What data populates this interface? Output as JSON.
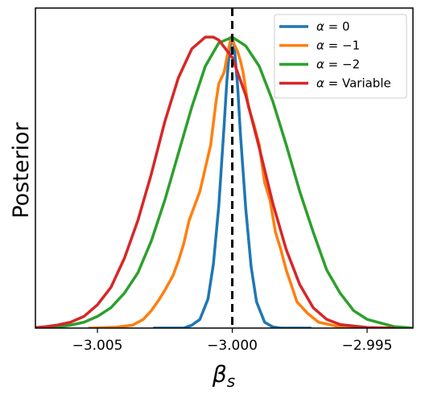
{
  "chart_data": {
    "type": "line",
    "xlabel": "β_s",
    "ylabel": "Posterior",
    "xlim": [
      -3.0073,
      -2.9933
    ],
    "ylim": [
      0,
      1.1
    ],
    "grid": false,
    "legend_position": "top-right",
    "x_ticks": [
      -3.005,
      -3.0,
      -2.995
    ],
    "x_tick_labels": [
      "−3.005",
      "−3.000",
      "−2.995"
    ],
    "reference_line": {
      "x": -3.0,
      "style": "dashed",
      "color": "#000000"
    },
    "series": [
      {
        "name": "α = 0",
        "legend_math": "α = 0",
        "color": "#1f77b4",
        "x": [
          -3.0029,
          -3.0018,
          -3.0015,
          -3.0012,
          -3.0009,
          -3.0007,
          -3.0005,
          -3.0003,
          -3.0002,
          -3.0001,
          -3.00005,
          -3.0,
          -2.99995,
          -2.9999,
          -2.9998,
          -2.9997,
          -2.9995,
          -2.9993,
          -2.9991,
          -2.9988,
          -2.9985,
          -2.9982,
          -2.9971
        ],
        "y": [
          0.0,
          0.0,
          0.01,
          0.03,
          0.1,
          0.22,
          0.42,
          0.7,
          0.85,
          0.96,
          0.98,
          1.0,
          0.98,
          0.94,
          0.83,
          0.67,
          0.41,
          0.21,
          0.09,
          0.02,
          0.004,
          0.0,
          0.0
        ]
      },
      {
        "name": "α = −1",
        "legend_math": "α = −1",
        "color": "#ff7f0e",
        "x": [
          -3.0053,
          -3.0043,
          -3.0037,
          -3.0033,
          -3.003,
          -3.0027,
          -3.0025,
          -3.0022,
          -3.002,
          -3.0018,
          -3.0016,
          -3.0014,
          -3.0012,
          -3.001,
          -3.0008,
          -3.0006,
          -3.0005,
          -3.0003,
          -3.0002,
          -3.00005,
          -2.9999,
          -2.9998,
          -2.9997,
          -2.9996,
          -2.9994,
          -2.9992,
          -2.999,
          -2.9988,
          -2.9986,
          -2.9984,
          -2.9982,
          -2.998,
          -2.9976,
          -2.9972,
          -2.9968,
          -2.996,
          -2.995
        ],
        "y": [
          0.0,
          0.003,
          0.01,
          0.03,
          0.06,
          0.1,
          0.13,
          0.18,
          0.23,
          0.29,
          0.37,
          0.42,
          0.47,
          0.55,
          0.63,
          0.78,
          0.84,
          0.88,
          0.93,
          1.0,
          0.97,
          0.95,
          0.92,
          0.88,
          0.76,
          0.7,
          0.63,
          0.5,
          0.44,
          0.33,
          0.27,
          0.2,
          0.09,
          0.05,
          0.02,
          0.004,
          0.0
        ]
      },
      {
        "name": "α = −2",
        "legend_math": "α = −2",
        "color": "#2ca02c",
        "x": [
          -3.0075,
          -3.0065,
          -3.006,
          -3.0055,
          -3.005,
          -3.0045,
          -3.004,
          -3.0035,
          -3.003,
          -3.0025,
          -3.002,
          -3.0015,
          -3.001,
          -3.0005,
          -3.0,
          -2.9995,
          -2.999,
          -2.9985,
          -2.998,
          -2.9975,
          -2.997,
          -2.9965,
          -2.996,
          -2.9955,
          -2.995,
          -2.994,
          -2.9933
        ],
        "y": [
          0.0,
          0.004,
          0.01,
          0.02,
          0.04,
          0.07,
          0.12,
          0.19,
          0.3,
          0.44,
          0.6,
          0.76,
          0.9,
          0.98,
          1.0,
          0.97,
          0.9,
          0.78,
          0.63,
          0.47,
          0.33,
          0.2,
          0.12,
          0.06,
          0.03,
          0.005,
          0.0
        ]
      },
      {
        "name": "α = Variable",
        "legend_math": "α = Variable",
        "color": "#d62728",
        "x": [
          -3.0075,
          -3.007,
          -3.0065,
          -3.006,
          -3.0055,
          -3.005,
          -3.0045,
          -3.004,
          -3.0035,
          -3.003,
          -3.0025,
          -3.002,
          -3.0015,
          -3.001,
          -3.0007,
          -3.0005,
          -3.0,
          -2.9995,
          -2.999,
          -2.9985,
          -2.998,
          -2.9975,
          -2.997,
          -2.9965,
          -2.996,
          -2.995,
          -2.994
        ],
        "y": [
          0.0,
          0.004,
          0.01,
          0.02,
          0.04,
          0.08,
          0.14,
          0.24,
          0.37,
          0.53,
          0.71,
          0.86,
          0.96,
          1.0,
          1.0,
          0.99,
          0.93,
          0.8,
          0.62,
          0.43,
          0.27,
          0.15,
          0.07,
          0.03,
          0.012,
          0.002,
          0.0
        ]
      }
    ]
  }
}
